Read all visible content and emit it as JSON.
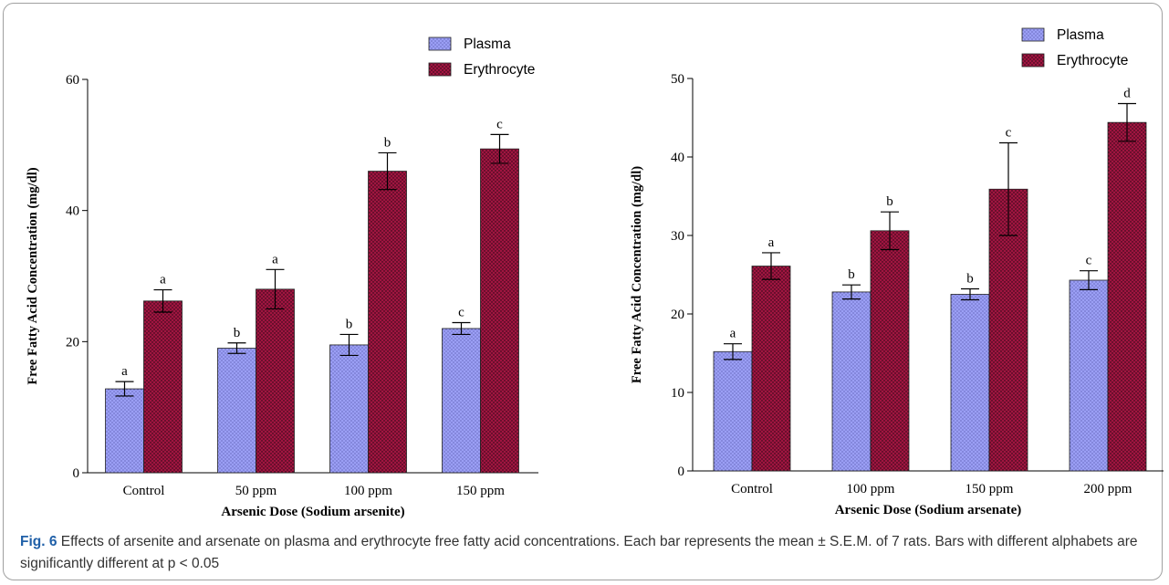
{
  "figure": {
    "caption_label": "Fig. 6",
    "caption_text": "Effects of arsenite and arsenate on plasma and erythrocyte free fatty acid concentrations. Each bar represents the mean ± S.E.M. of 7 rats. Bars with different alphabets are significantly different at p < 0.05"
  },
  "colors": {
    "plasma": "#9b9ff5",
    "erythrocyte": "#a01540"
  },
  "chart_data": [
    {
      "type": "bar",
      "xlabel": "Arsenic Dose (Sodium arsenite)",
      "ylabel": "Free Fatty Acid Concentration (mg/dl)",
      "ylim": [
        0,
        60
      ],
      "yticks": [
        0,
        20,
        40,
        60
      ],
      "categories": [
        "Control",
        "50 ppm",
        "100 ppm",
        "150 ppm"
      ],
      "legend_position": "top-right",
      "series": [
        {
          "name": "Plasma",
          "values": [
            12.8,
            19.0,
            19.5,
            22.0
          ],
          "errors": [
            1.1,
            0.8,
            1.6,
            0.9
          ],
          "letters": [
            "a",
            "b",
            "b",
            "c"
          ]
        },
        {
          "name": "Erythrocyte",
          "values": [
            26.2,
            28.0,
            46.0,
            49.4
          ],
          "errors": [
            1.7,
            3.0,
            2.8,
            2.2
          ],
          "letters": [
            "a",
            "a",
            "b",
            "c"
          ]
        }
      ]
    },
    {
      "type": "bar",
      "xlabel": "Arsenic Dose (Sodium arsenate)",
      "ylabel": "Free Fatty Acid Concentration (mg/dl)",
      "ylim": [
        0,
        50
      ],
      "yticks": [
        0,
        10,
        20,
        30,
        40,
        50
      ],
      "categories": [
        "Control",
        "100 ppm",
        "150 ppm",
        "200 ppm"
      ],
      "legend_position": "top-right",
      "series": [
        {
          "name": "Plasma",
          "values": [
            15.2,
            22.8,
            22.5,
            24.3
          ],
          "errors": [
            1.0,
            0.9,
            0.7,
            1.2
          ],
          "letters": [
            "a",
            "b",
            "b",
            "c"
          ]
        },
        {
          "name": "Erythrocyte",
          "values": [
            26.1,
            30.6,
            35.9,
            44.4
          ],
          "errors": [
            1.7,
            2.4,
            5.9,
            2.4
          ],
          "letters": [
            "a",
            "b",
            "c",
            "d"
          ]
        }
      ]
    }
  ]
}
